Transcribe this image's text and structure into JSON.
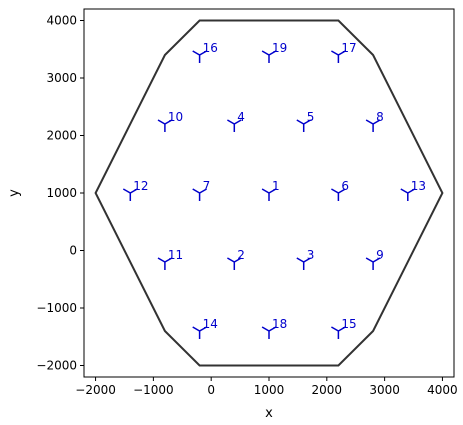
{
  "chart_data": {
    "type": "scatter",
    "xlabel": "x",
    "ylabel": "y",
    "xlim": [
      -2200,
      4200
    ],
    "ylim": [
      -2200,
      4200
    ],
    "xticks": [
      -2000,
      -1000,
      0,
      1000,
      2000,
      3000,
      4000
    ],
    "yticks": [
      -2000,
      -1000,
      0,
      1000,
      2000,
      3000,
      4000
    ],
    "grid": false,
    "colors": {
      "boundary": "#333333",
      "marker": "#0000cc",
      "label": "#0000cc"
    },
    "boundary": [
      [
        -200,
        4000
      ],
      [
        2200,
        4000
      ],
      [
        2800,
        3400
      ],
      [
        4000,
        1000
      ],
      [
        2800,
        -1400
      ],
      [
        2200,
        -2000
      ],
      [
        -200,
        -2000
      ],
      [
        -800,
        -1400
      ],
      [
        -2000,
        1000
      ],
      [
        -800,
        3400
      ]
    ],
    "points": [
      {
        "label": "1",
        "x": 1000,
        "y": 1000
      },
      {
        "label": "2",
        "x": 400,
        "y": -200
      },
      {
        "label": "3",
        "x": 1600,
        "y": -200
      },
      {
        "label": "4",
        "x": 400,
        "y": 2200
      },
      {
        "label": "5",
        "x": 1600,
        "y": 2200
      },
      {
        "label": "6",
        "x": 2200,
        "y": 1000
      },
      {
        "label": "7",
        "x": -200,
        "y": 1000
      },
      {
        "label": "8",
        "x": 2800,
        "y": 2200
      },
      {
        "label": "9",
        "x": 2800,
        "y": -200
      },
      {
        "label": "10",
        "x": -800,
        "y": 2200
      },
      {
        "label": "11",
        "x": -800,
        "y": -200
      },
      {
        "label": "12",
        "x": -1400,
        "y": 1000
      },
      {
        "label": "13",
        "x": 3400,
        "y": 1000
      },
      {
        "label": "14",
        "x": -200,
        "y": -1400
      },
      {
        "label": "15",
        "x": 2200,
        "y": -1400
      },
      {
        "label": "16",
        "x": -200,
        "y": 3400
      },
      {
        "label": "17",
        "x": 2200,
        "y": 3400
      },
      {
        "label": "18",
        "x": 1000,
        "y": -1400
      },
      {
        "label": "19",
        "x": 1000,
        "y": 3400
      }
    ]
  }
}
